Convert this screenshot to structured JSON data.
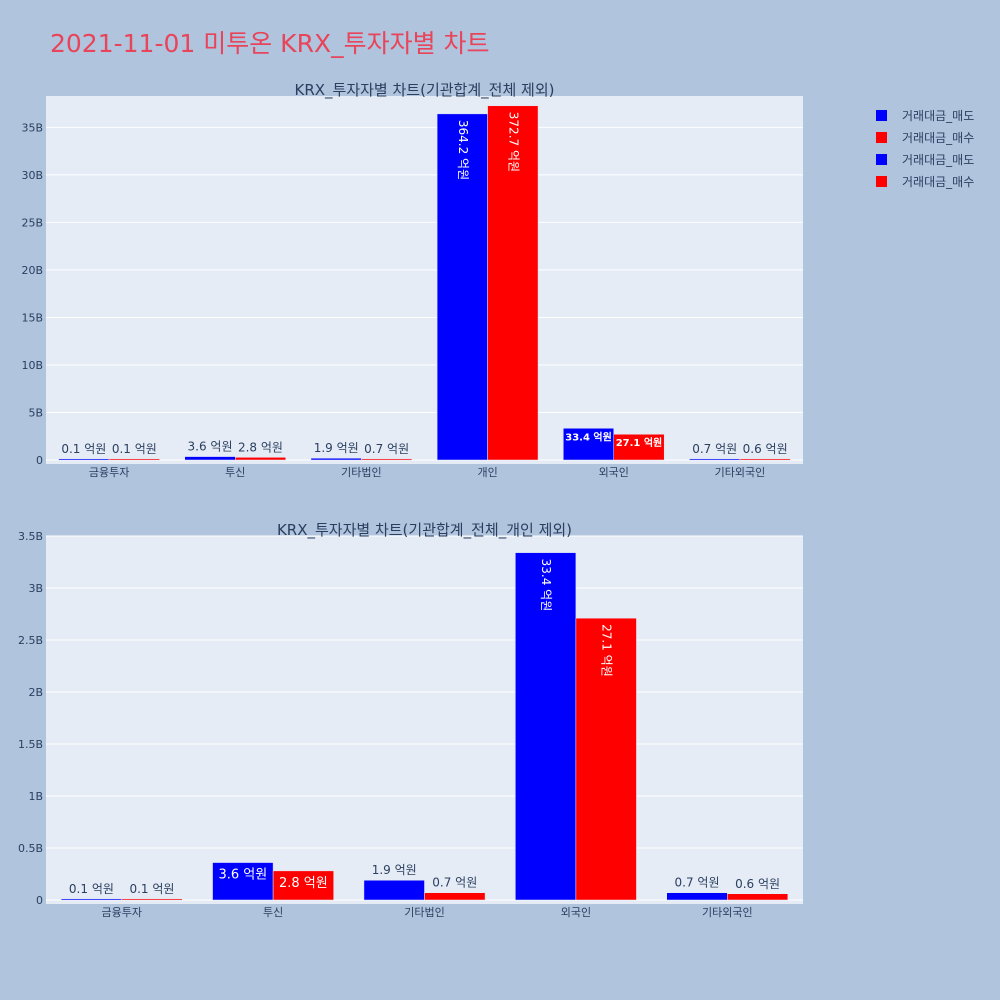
{
  "page": {
    "title": "2021-11-01 미투온 KRX_투자자별 차트"
  },
  "legend": {
    "items": [
      {
        "label": "거래대금_매도",
        "color": "#0000ff"
      },
      {
        "label": "거래대금_매수",
        "color": "#ff0000"
      },
      {
        "label": "거래대금_매도",
        "color": "#0000ff"
      },
      {
        "label": "거래대금_매수",
        "color": "#ff0000"
      }
    ]
  },
  "chart_data": [
    {
      "type": "bar",
      "title": "KRX_투자자별 차트(기관합계_전체 제외)",
      "categories": [
        "금융투자",
        "투신",
        "기타법인",
        "개인",
        "외국인",
        "기타외국인"
      ],
      "series": [
        {
          "name": "거래대금_매도",
          "color": "#0000ff",
          "values": [
            0.01,
            0.36,
            0.19,
            36.42,
            3.34,
            0.07
          ],
          "labels": [
            "0.1 억원",
            "3.6 억원",
            "1.9 억원",
            "364.2 억원",
            "33.4 억원",
            "0.7 억원"
          ]
        },
        {
          "name": "거래대금_매수",
          "color": "#ff0000",
          "values": [
            0.01,
            0.28,
            0.07,
            37.27,
            2.71,
            0.06
          ],
          "labels": [
            "0.1 억원",
            "2.8 억원",
            "0.7 억원",
            "372.7 억원",
            "27.1 억원",
            "0.6 억원"
          ]
        }
      ],
      "yticks": [
        "0",
        "5B",
        "10B",
        "15B",
        "20B",
        "25B",
        "30B",
        "35B"
      ],
      "ylim": [
        0,
        38.3
      ],
      "grid": true
    },
    {
      "type": "bar",
      "title": "KRX_투자자별 차트(기관합계_전체_개인 제외)",
      "categories": [
        "금융투자",
        "투신",
        "기타법인",
        "외국인",
        "기타외국인"
      ],
      "series": [
        {
          "name": "거래대금_매도",
          "color": "#0000ff",
          "values": [
            0.01,
            0.36,
            0.19,
            3.34,
            0.07
          ],
          "labels": [
            "0.1 억원",
            "3.6 억원",
            "1.9 억원",
            "33.4 억원",
            "0.7 억원"
          ]
        },
        {
          "name": "거래대금_매수",
          "color": "#ff0000",
          "values": [
            0.01,
            0.28,
            0.07,
            2.71,
            0.06
          ],
          "labels": [
            "0.1 억원",
            "2.8 억원",
            "0.7 억원",
            "27.1 억원",
            "0.6 억원"
          ]
        }
      ],
      "yticks": [
        "0",
        "0.5B",
        "1B",
        "1.5B",
        "2B",
        "2.5B",
        "3B",
        "3.5B"
      ],
      "ylim": [
        0,
        3.5
      ],
      "grid": true
    }
  ]
}
